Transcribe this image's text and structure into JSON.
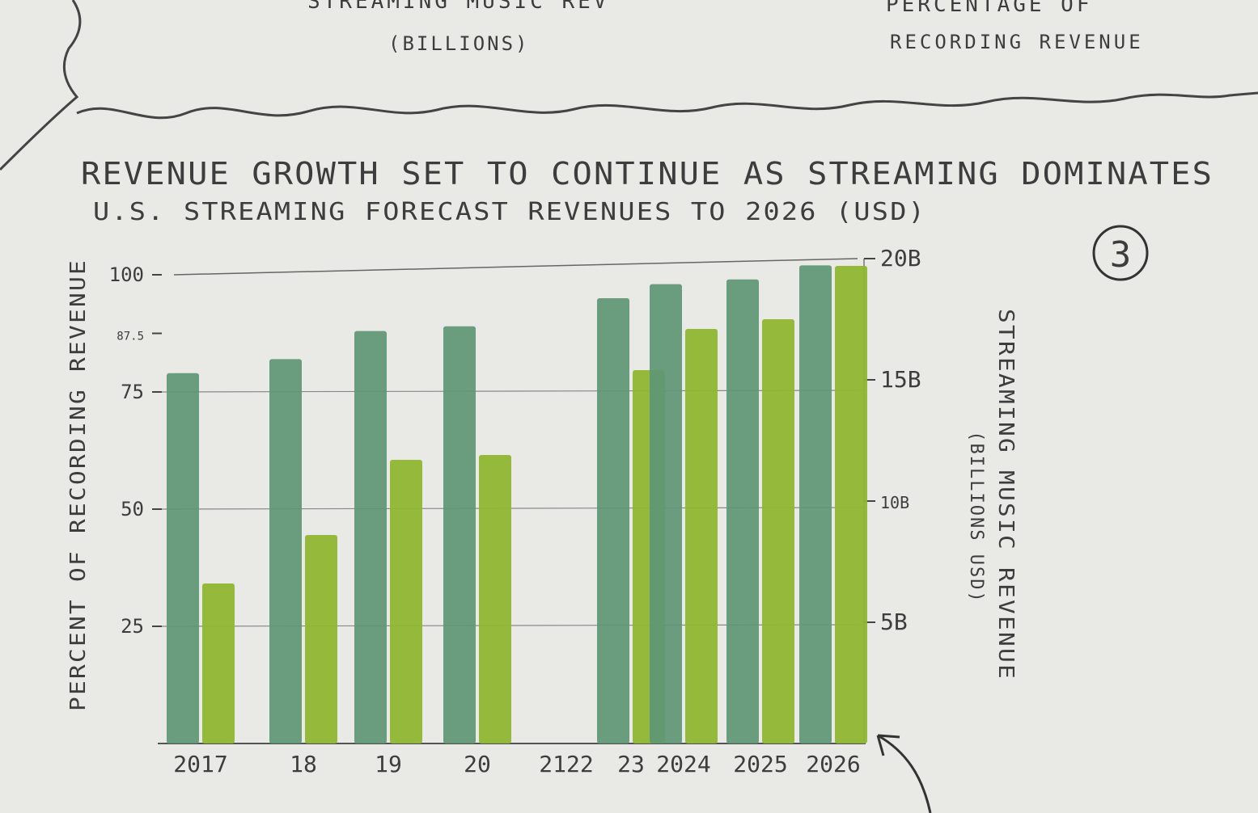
{
  "header": {
    "left_label_partial": "STREAMING MUSIC REV",
    "left_label": "(BILLIONS)",
    "right_label_partial": "PERCENTAGE OF",
    "right_label": "RECORDING REVENUE"
  },
  "page_number": "3",
  "chart_data": {
    "type": "bar",
    "title": "REVENUE GROWTH SET TO CONTINUE AS STREAMING DOMINATES",
    "subtitle": "U.S. STREAMING FORECAST REVENUES TO 2026 (USD)",
    "categories": [
      "2017",
      "18",
      "19",
      "20",
      "2122",
      "23",
      "2024",
      "2025",
      "2026"
    ],
    "ylabel_left": "PERCENT OF RECORDING REVENUE",
    "ylabel_right": "STREAMING MUSIC REVENUE",
    "ylabel_right_sub": "(BILLIONS USD)",
    "left_axis": {
      "ylim": [
        0,
        100
      ],
      "ticks": [
        25,
        50,
        75,
        87.5,
        100
      ],
      "tick_labels": [
        "25",
        "50",
        "75",
        "87.5",
        "100"
      ]
    },
    "right_axis": {
      "ylim": [
        0,
        20
      ],
      "ticks": [
        5,
        10,
        15,
        20
      ],
      "tick_labels": [
        "5B",
        "10B",
        "15B",
        "20B"
      ]
    },
    "series": [
      {
        "axis": "left",
        "values": [
          79,
          82,
          88,
          89,
          null,
          95,
          98,
          99,
          102
        ]
      },
      {
        "axis": "right",
        "values": [
          6.6,
          8.6,
          11.7,
          11.9,
          null,
          15.4,
          17.1,
          17.5,
          19.7
        ]
      }
    ],
    "colors": {
      "percent_bars": "#5e9675",
      "revenue_bars": "#8fb632",
      "pencil": "#555555",
      "paper": "#e9e9e6"
    },
    "grid": true
  }
}
